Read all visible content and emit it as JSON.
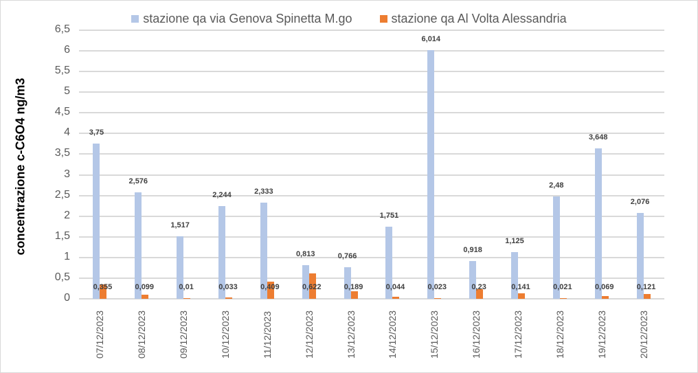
{
  "chart_data": {
    "type": "bar",
    "title": "",
    "xlabel": "",
    "ylabel": "concentrazione c-C6O4 ng/m3",
    "ylim": [
      0,
      6.5
    ],
    "yticks": [
      "0",
      "0,5",
      "1",
      "1,5",
      "2",
      "2,5",
      "3",
      "3,5",
      "4",
      "4,5",
      "5",
      "5,5",
      "6",
      "6,5"
    ],
    "grid": true,
    "legend_position": "top",
    "categories": [
      "07/12/2023",
      "08/12/2023",
      "09/12/2023",
      "10/12/2023",
      "11/12/2023",
      "12/12/2023",
      "13/12/2023",
      "14/12/2023",
      "15/12/2023",
      "16/12/2023",
      "17/12/2023",
      "18/12/2023",
      "19/12/2023",
      "20/12/2023"
    ],
    "series": [
      {
        "name": "stazione qa via Genova Spinetta M.go",
        "color": "#b4c7e7",
        "values": [
          3.75,
          2.576,
          1.517,
          2.244,
          2.333,
          0.813,
          0.766,
          1.751,
          6.014,
          0.918,
          1.125,
          2.48,
          3.648,
          2.076
        ],
        "labels": [
          "3,75",
          "2,576",
          "1,517",
          "2,244",
          "2,333",
          "0,813",
          "0,766",
          "1,751",
          "6,014",
          "0,918",
          "1,125",
          "2,48",
          "3,648",
          "2,076"
        ]
      },
      {
        "name": "stazione qa Al Volta Alessandria",
        "color": "#ed7d31",
        "values": [
          0.355,
          0.099,
          0.01,
          0.033,
          0.409,
          0.622,
          0.189,
          0.044,
          0.023,
          0.23,
          0.141,
          0.021,
          0.069,
          0.121
        ],
        "labels": [
          "0,355",
          "0,099",
          "0,01",
          "0,033",
          "0,409",
          "0,622",
          "0,189",
          "0,044",
          "0,023",
          "0,23",
          "0,141",
          "0,021",
          "0,069",
          "0,121"
        ]
      }
    ]
  }
}
